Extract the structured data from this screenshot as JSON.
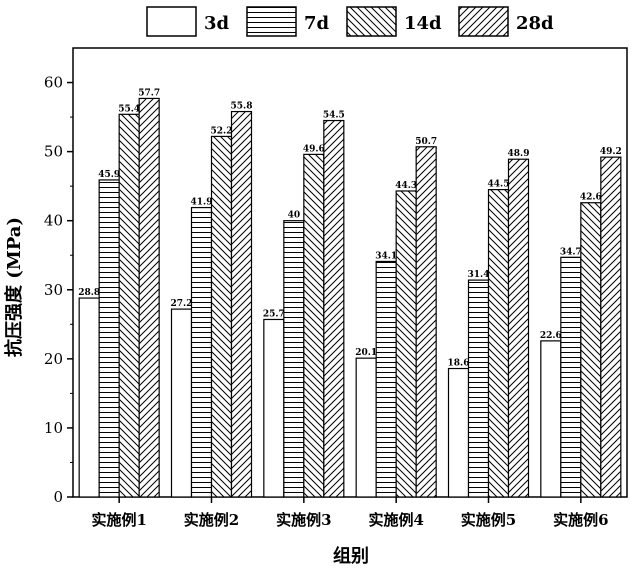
{
  "chart_data": {
    "type": "bar",
    "title": "",
    "xlabel": "组别",
    "ylabel": "抗压强度 (MPa)",
    "ylim": [
      0,
      65
    ],
    "yticks": [
      0,
      10,
      20,
      30,
      40,
      50,
      60
    ],
    "grid": false,
    "legend_position": "top",
    "categories": [
      "实施例1",
      "实施例2",
      "实施例3",
      "实施例4",
      "实施例5",
      "实施例6"
    ],
    "series": [
      {
        "name": "3d",
        "pattern": "none",
        "values": [
          28.8,
          27.2,
          25.7,
          20.1,
          18.6,
          22.6
        ]
      },
      {
        "name": "7d",
        "pattern": "horizontal",
        "values": [
          45.9,
          41.9,
          40,
          34.1,
          31.4,
          34.7
        ]
      },
      {
        "name": "14d",
        "pattern": "backslash",
        "values": [
          55.4,
          52.2,
          49.6,
          44.3,
          44.5,
          42.6
        ]
      },
      {
        "name": "28d",
        "pattern": "slash",
        "values": [
          57.7,
          55.8,
          54.5,
          50.7,
          48.9,
          49.2
        ]
      }
    ],
    "colors": {
      "stroke": "#000000",
      "fill": "#ffffff"
    }
  }
}
